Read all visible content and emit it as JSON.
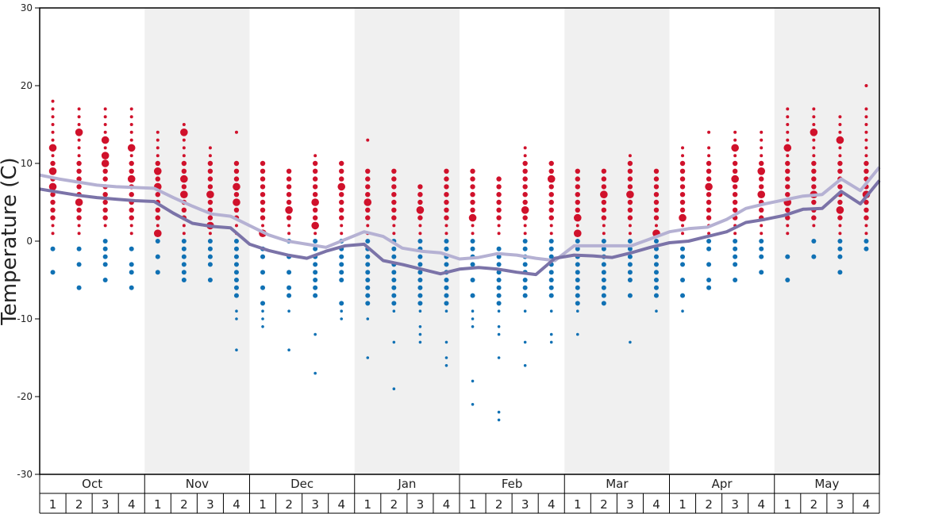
{
  "chart_data": {
    "type": "scatter",
    "ylabel": "Temperature (C)",
    "ylim": [
      -30,
      30
    ],
    "yticks": [
      30,
      20,
      10,
      0,
      -10,
      -20,
      -30
    ],
    "months": [
      "Oct",
      "Nov",
      "Dec",
      "Jan",
      "Feb",
      "Mar",
      "Apr",
      "May"
    ],
    "weeks": [
      "1",
      "2",
      "3",
      "4"
    ],
    "grid": false,
    "shaded_months": [
      "Nov",
      "Jan",
      "Mar",
      "May"
    ],
    "colors": {
      "warm_dot": "#d0112b",
      "cold_dot": "#1071b4",
      "upper_line": "#b5b1d3",
      "lower_line": "#7b73a8",
      "shade": "#f0f0f0"
    },
    "series": [
      {
        "values": [
          8.5,
          8.0,
          7.6,
          7.2,
          7.0,
          6.9,
          6.8,
          5.6,
          4.5,
          3.5,
          3.2,
          2.0,
          0.8,
          0.0,
          -0.4,
          -0.8,
          0.2,
          1.2,
          0.6,
          -0.9,
          -1.3,
          -1.5,
          -2.3,
          -2.1,
          -1.6,
          -1.8,
          -2.2,
          -2.5,
          -0.6,
          -0.6,
          -0.6,
          -0.6,
          0.3,
          1.2,
          1.6,
          1.8,
          2.8,
          4.2,
          4.8,
          5.3,
          5.8,
          6.0,
          8.0,
          6.5,
          9.5
        ]
      },
      {
        "values": [
          6.7,
          6.3,
          5.9,
          5.6,
          5.4,
          5.2,
          5.1,
          3.6,
          2.3,
          1.9,
          1.7,
          -0.4,
          -1.2,
          -1.8,
          -2.2,
          -1.3,
          -0.6,
          -0.4,
          -2.5,
          -3.0,
          -3.6,
          -4.2,
          -3.6,
          -3.4,
          -3.6,
          -4.0,
          -4.3,
          -2.2,
          -1.8,
          -1.9,
          -2.1,
          -1.5,
          -0.8,
          -0.2,
          0.0,
          0.6,
          1.2,
          2.4,
          2.8,
          3.3,
          4.1,
          4.2,
          6.4,
          4.8,
          7.8
        ]
      }
    ],
    "dots": [
      {
        "week": 1,
        "warm": [
          18,
          17,
          16,
          15,
          14,
          13,
          12,
          11,
          10,
          9,
          8,
          7,
          6,
          5,
          4,
          3,
          2,
          1
        ],
        "cold": [
          -1,
          -4
        ],
        "big_warm": [
          12,
          9,
          7
        ]
      },
      {
        "week": 2,
        "warm": [
          17,
          16,
          15,
          14,
          13,
          12,
          11,
          10,
          9,
          8,
          7,
          6,
          5,
          4,
          3,
          2,
          1
        ],
        "cold": [
          -1,
          -3,
          -6
        ],
        "big_warm": [
          14,
          5
        ]
      },
      {
        "week": 3,
        "warm": [
          17,
          16,
          15,
          14,
          13,
          12,
          11,
          10,
          9,
          8,
          7,
          6,
          5,
          4,
          3,
          2
        ],
        "cold": [
          0,
          -1,
          -2,
          -3,
          -5
        ],
        "big_warm": [
          11,
          13,
          10
        ]
      },
      {
        "week": 4,
        "warm": [
          17,
          16,
          15,
          14,
          13,
          12,
          11,
          10,
          9,
          8,
          7,
          6,
          5,
          4,
          3,
          2,
          1
        ],
        "cold": [
          -1,
          -3,
          -4,
          -6
        ],
        "big_warm": [
          12,
          8
        ]
      },
      {
        "week": 5,
        "warm": [
          14,
          13,
          12,
          11,
          10,
          9,
          8,
          7,
          6,
          5,
          4,
          3,
          2,
          1
        ],
        "cold": [
          0,
          -2,
          -4
        ],
        "big_warm": [
          7,
          9,
          1
        ]
      },
      {
        "week": 6,
        "warm": [
          15,
          14,
          13,
          12,
          11,
          10,
          9,
          8,
          7,
          6,
          5,
          4,
          3,
          2,
          1
        ],
        "cold": [
          0,
          -1,
          -2,
          -3,
          -4,
          -5
        ],
        "big_warm": [
          14,
          6,
          8
        ]
      },
      {
        "week": 7,
        "warm": [
          12,
          11,
          10,
          9,
          8,
          7,
          6,
          5,
          4,
          3,
          2,
          1
        ],
        "cold": [
          0,
          -1,
          -2,
          -3,
          -5
        ],
        "big_warm": [
          6,
          2
        ]
      },
      {
        "week": 8,
        "warm": [
          14,
          10,
          9,
          8,
          7,
          6,
          5,
          4,
          3,
          2,
          1
        ],
        "cold": [
          0,
          -1,
          -2,
          -3,
          -4,
          -5,
          -6,
          -7,
          -9,
          -10,
          -14
        ],
        "big_warm": [
          7,
          5
        ]
      },
      {
        "week": 9,
        "warm": [
          10,
          9,
          8,
          7,
          6,
          5,
          4,
          3,
          2,
          1
        ],
        "cold": [
          -1,
          -2,
          -4,
          -6,
          -8,
          -9,
          -10,
          -11
        ],
        "big_warm": [
          1
        ]
      },
      {
        "week": 10,
        "warm": [
          9,
          8,
          7,
          6,
          5,
          4,
          3,
          2,
          1
        ],
        "cold": [
          0,
          -2,
          -4,
          -6,
          -7,
          -9,
          -14
        ],
        "big_warm": [
          4
        ]
      },
      {
        "week": 11,
        "warm": [
          11,
          10,
          9,
          8,
          7,
          6,
          5,
          4,
          3,
          2,
          1
        ],
        "cold": [
          0,
          -1,
          -2,
          -3,
          -4,
          -5,
          -6,
          -7,
          -12,
          -17
        ],
        "big_warm": [
          5,
          2
        ]
      },
      {
        "week": 12,
        "warm": [
          10,
          9,
          8,
          7,
          6,
          5,
          4,
          3,
          2,
          1
        ],
        "cold": [
          0,
          -1,
          -2,
          -3,
          -4,
          -5,
          -8,
          -9,
          -10
        ],
        "big_warm": [
          7
        ]
      },
      {
        "week": 13,
        "warm": [
          13,
          9,
          8,
          7,
          6,
          5,
          4,
          3,
          2,
          1
        ],
        "cold": [
          0,
          -1,
          -2,
          -3,
          -4,
          -5,
          -6,
          -7,
          -8,
          -10,
          -15
        ],
        "big_warm": [
          5
        ]
      },
      {
        "week": 14,
        "warm": [
          9,
          8,
          7,
          6,
          5,
          4,
          3,
          2,
          1
        ],
        "cold": [
          0,
          -1,
          -2,
          -3,
          -4,
          -5,
          -6,
          -7,
          -8,
          -9,
          -13,
          -19
        ],
        "big_warm": []
      },
      {
        "week": 15,
        "warm": [
          7,
          6,
          5,
          4,
          3,
          2,
          1
        ],
        "cold": [
          0,
          -1,
          -2,
          -3,
          -4,
          -5,
          -6,
          -7,
          -8,
          -9,
          -11,
          -12,
          -13
        ],
        "big_warm": [
          4
        ]
      },
      {
        "week": 16,
        "warm": [
          9,
          8,
          7,
          6,
          5,
          4,
          3,
          2,
          1
        ],
        "cold": [
          0,
          -1,
          -2,
          -3,
          -4,
          -5,
          -6,
          -7,
          -8,
          -9,
          -13,
          -15,
          -16
        ],
        "big_warm": []
      },
      {
        "week": 17,
        "warm": [
          9,
          8,
          7,
          6,
          5,
          4,
          3,
          2,
          1
        ],
        "cold": [
          0,
          -1,
          -2,
          -3,
          -5,
          -7,
          -9,
          -10,
          -11,
          -18,
          -21
        ],
        "big_warm": [
          3
        ]
      },
      {
        "week": 18,
        "warm": [
          8,
          7,
          6,
          5,
          4,
          3,
          2,
          1
        ],
        "cold": [
          -1,
          -2,
          -3,
          -4,
          -5,
          -6,
          -7,
          -8,
          -9,
          -11,
          -12,
          -15,
          -22,
          -23
        ],
        "big_warm": []
      },
      {
        "week": 19,
        "warm": [
          12,
          11,
          10,
          9,
          8,
          7,
          6,
          5,
          4,
          3,
          2,
          1
        ],
        "cold": [
          0,
          -1,
          -2,
          -3,
          -4,
          -5,
          -6,
          -7,
          -9,
          -13,
          -16
        ],
        "big_warm": [
          4
        ]
      },
      {
        "week": 20,
        "warm": [
          10,
          9,
          8,
          7,
          6,
          5,
          4,
          3,
          2,
          1
        ],
        "cold": [
          0,
          -1,
          -2,
          -3,
          -4,
          -5,
          -6,
          -7,
          -9,
          -12,
          -13
        ],
        "big_warm": [
          8
        ]
      },
      {
        "week": 21,
        "warm": [
          9,
          8,
          7,
          6,
          5,
          4,
          3,
          2,
          1
        ],
        "cold": [
          0,
          -1,
          -2,
          -3,
          -4,
          -5,
          -6,
          -7,
          -8,
          -9,
          -12
        ],
        "big_warm": [
          3,
          1
        ]
      },
      {
        "week": 22,
        "warm": [
          9,
          8,
          7,
          6,
          5,
          4,
          3,
          2,
          1
        ],
        "cold": [
          0,
          -1,
          -2,
          -3,
          -4,
          -5,
          -6,
          -7,
          -8
        ],
        "big_warm": [
          6
        ]
      },
      {
        "week": 23,
        "warm": [
          11,
          10,
          9,
          8,
          7,
          6,
          5,
          4,
          3,
          2,
          1
        ],
        "cold": [
          0,
          -1,
          -2,
          -3,
          -4,
          -5,
          -7,
          -13
        ],
        "big_warm": [
          6
        ]
      },
      {
        "week": 24,
        "warm": [
          9,
          8,
          7,
          6,
          5,
          4,
          3,
          2,
          1
        ],
        "cold": [
          0,
          -1,
          -2,
          -3,
          -4,
          -5,
          -6,
          -7,
          -9
        ],
        "big_warm": [
          1
        ]
      },
      {
        "week": 25,
        "warm": [
          12,
          11,
          10,
          9,
          8,
          7,
          6,
          5,
          4,
          3,
          2,
          1
        ],
        "cold": [
          -1,
          -2,
          -3,
          -5,
          -7,
          -9
        ],
        "big_warm": [
          3
        ]
      },
      {
        "week": 26,
        "warm": [
          14,
          12,
          11,
          10,
          9,
          8,
          7,
          6,
          5,
          4,
          3,
          2,
          1
        ],
        "cold": [
          0,
          -1,
          -3,
          -5,
          -6
        ],
        "big_warm": [
          7
        ]
      },
      {
        "week": 27,
        "warm": [
          14,
          13,
          12,
          11,
          10,
          9,
          8,
          7,
          6,
          5,
          4,
          3,
          2,
          1
        ],
        "cold": [
          0,
          -1,
          -2,
          -3,
          -5
        ],
        "big_warm": [
          12,
          8
        ]
      },
      {
        "week": 28,
        "warm": [
          14,
          13,
          12,
          11,
          10,
          9,
          8,
          7,
          6,
          5,
          4,
          3,
          2,
          1
        ],
        "cold": [
          0,
          -1,
          -2,
          -4
        ],
        "big_warm": [
          9,
          6
        ]
      },
      {
        "week": 29,
        "warm": [
          17,
          16,
          15,
          14,
          13,
          12,
          11,
          10,
          9,
          8,
          7,
          6,
          5,
          4,
          3,
          2,
          1
        ],
        "cold": [
          -2,
          -5
        ],
        "big_warm": [
          12,
          5
        ]
      },
      {
        "week": 30,
        "warm": [
          17,
          16,
          15,
          14,
          13,
          12,
          11,
          10,
          9,
          8,
          7,
          6,
          5,
          4,
          3,
          2
        ],
        "cold": [
          0,
          -2
        ],
        "big_warm": [
          14,
          6
        ]
      },
      {
        "week": 31,
        "warm": [
          16,
          15,
          14,
          13,
          12,
          11,
          10,
          9,
          8,
          7,
          6,
          5,
          4,
          3,
          2,
          1
        ],
        "cold": [
          0,
          -1,
          -2,
          -4
        ],
        "big_warm": [
          13,
          4
        ]
      },
      {
        "week": 32,
        "warm": [
          20,
          17,
          16,
          15,
          14,
          13,
          12,
          11,
          10,
          9,
          8,
          7,
          6,
          5,
          4,
          3,
          2,
          1
        ],
        "cold": [
          0,
          -1
        ],
        "big_warm": [
          6
        ]
      }
    ]
  }
}
